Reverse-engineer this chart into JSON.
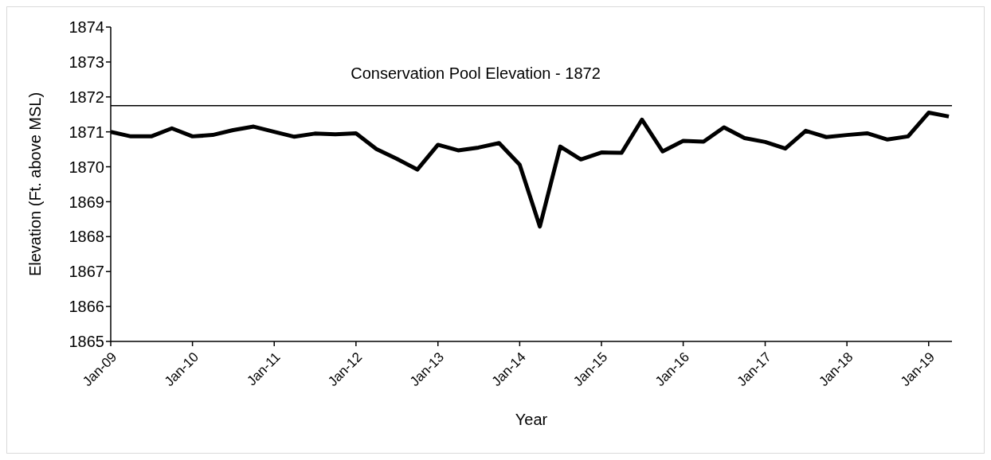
{
  "chart_data": {
    "type": "line",
    "xlabel": "Year",
    "ylabel": "Elevation (Ft. above MSL)",
    "x": [
      "2009-01",
      "2009-04",
      "2009-07",
      "2009-10",
      "2010-01",
      "2010-04",
      "2010-07",
      "2010-10",
      "2011-01",
      "2011-04",
      "2011-07",
      "2011-10",
      "2012-01",
      "2012-04",
      "2012-07",
      "2012-10",
      "2013-01",
      "2013-04",
      "2013-07",
      "2013-10",
      "2014-01",
      "2014-04",
      "2014-07",
      "2014-10",
      "2015-01",
      "2015-04",
      "2015-07",
      "2015-10",
      "2016-01",
      "2016-04",
      "2016-07",
      "2016-10",
      "2017-01",
      "2017-04",
      "2017-07",
      "2017-10",
      "2018-01",
      "2018-04",
      "2018-07",
      "2018-10",
      "2019-01",
      "2019-04"
    ],
    "series": [
      {
        "color": "#000000",
        "values": [
          1871.0,
          1870.87,
          1870.87,
          1871.1,
          1870.87,
          1870.91,
          1871.05,
          1871.15,
          1871.0,
          1870.86,
          1870.95,
          1870.93,
          1870.96,
          1870.51,
          1870.23,
          1869.92,
          1870.63,
          1870.47,
          1870.55,
          1870.68,
          1870.06,
          1868.29,
          1870.58,
          1870.21,
          1870.41,
          1870.4,
          1871.35,
          1870.44,
          1870.74,
          1870.72,
          1871.13,
          1870.82,
          1870.71,
          1870.52,
          1871.03,
          1870.85,
          1870.91,
          1870.96,
          1870.78,
          1870.87,
          1871.55,
          1871.44
        ]
      }
    ],
    "xlim": [
      "2009-01",
      "2019-04-15"
    ],
    "xticks": [
      {
        "value": "2009-01",
        "label": "Jan-09"
      },
      {
        "value": "2010-01",
        "label": "Jan-10"
      },
      {
        "value": "2011-01",
        "label": "Jan-11"
      },
      {
        "value": "2012-01",
        "label": "Jan-12"
      },
      {
        "value": "2013-01",
        "label": "Jan-13"
      },
      {
        "value": "2014-01",
        "label": "Jan-14"
      },
      {
        "value": "2015-01",
        "label": "Jan-15"
      },
      {
        "value": "2016-01",
        "label": "Jan-16"
      },
      {
        "value": "2017-01",
        "label": "Jan-17"
      },
      {
        "value": "2018-01",
        "label": "Jan-18"
      },
      {
        "value": "2019-01",
        "label": "Jan-19"
      }
    ],
    "ylim": [
      1865,
      1874
    ],
    "yticks": [
      1865,
      1866,
      1867,
      1868,
      1869,
      1870,
      1871,
      1872,
      1873,
      1874
    ],
    "ref_lines": [
      {
        "axis": "y",
        "value": 1871.75,
        "label": "Conservation Pool Elevation - 1872",
        "color": "#000000",
        "line_style": "solid"
      }
    ],
    "grid": false,
    "legend": false,
    "marker": "none",
    "line_style": "solid"
  }
}
